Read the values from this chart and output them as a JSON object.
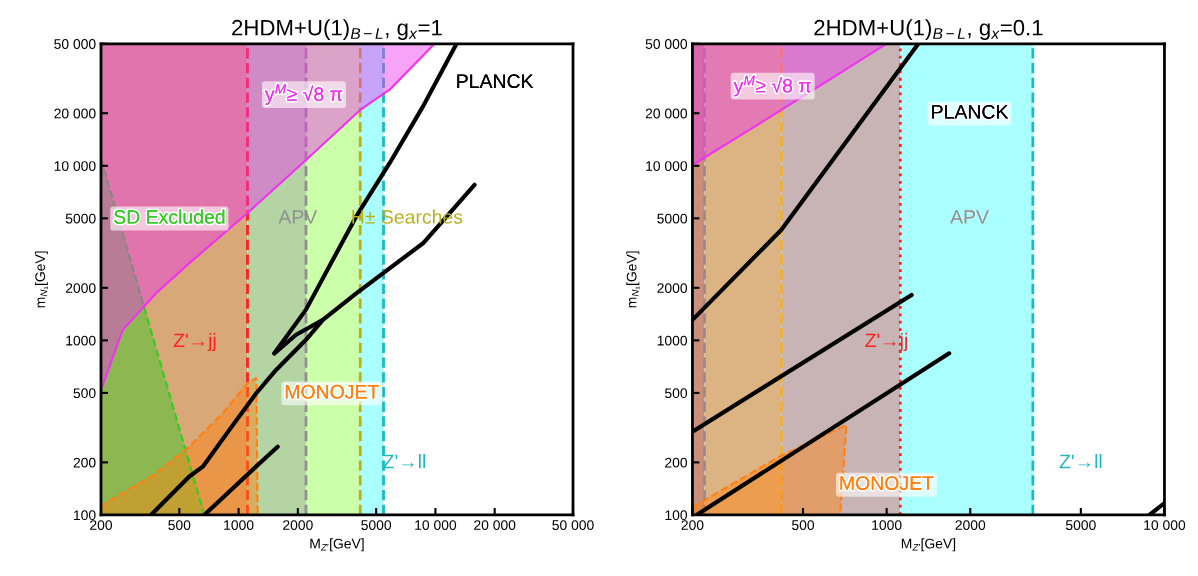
{
  "chart_data": [
    {
      "type": "line",
      "title": "2HDM+U(1)$_{B−L}$, g$_{x}$=1",
      "xlabel": "M$_{Z′}$[GeV]",
      "ylabel": "m$_{N₁}$[GeV]",
      "log": "xy",
      "grid": false,
      "legend": false,
      "xlim": [
        200,
        50000
      ],
      "ylim": [
        100,
        50000
      ],
      "xticks": [
        200,
        500,
        1000,
        2000,
        5000,
        {
          "value": 10000,
          "label": "10 000"
        },
        {
          "value": 20000,
          "label": "20 000"
        },
        {
          "value": 50000,
          "label": "50 000"
        }
      ],
      "yticks": [
        100,
        200,
        500,
        1000,
        2000,
        5000,
        {
          "value": 10000,
          "label": "10 000"
        },
        {
          "value": 20000,
          "label": "20 000"
        },
        {
          "value": 50000,
          "label": "50 000"
        }
      ],
      "bands": [
        {
          "axis": "x",
          "from": 200,
          "to": 1110,
          "color": "#d8a878"
        },
        {
          "axis": "x",
          "from": 1110,
          "to": 2200,
          "color": "#b4d4a4"
        },
        {
          "axis": "x",
          "from": 2200,
          "to": 4150,
          "color": "#ccffaa"
        },
        {
          "axis": "x",
          "from": 4150,
          "to": 5450,
          "color": "#aaffff"
        }
      ],
      "ref_lines": [
        {
          "axis": "x",
          "value": 1110,
          "label": "Z'→jj",
          "color": "#ff2020",
          "line_style": "dashed"
        },
        {
          "axis": "x",
          "value": 2200,
          "label": "APV",
          "color": "#909090",
          "line_style": "dashed"
        },
        {
          "axis": "x",
          "value": 4150,
          "label": "H± Searches",
          "color": "#b8b020",
          "line_style": "dashed"
        },
        {
          "axis": "x",
          "value": 5450,
          "label": "Z'→ll",
          "color": "#20b8c0",
          "line_style": "dashed"
        }
      ],
      "series": [
        {
          "type": "area",
          "name": "SD Excluded",
          "color": "#33cc22",
          "x": [
            200,
            670
          ],
          "values": [
            11000,
            100
          ]
        },
        {
          "type": "area",
          "name": "MONOJET",
          "color": "#ff8010",
          "x": [
            200,
            212,
            381,
            562,
            832,
            1110,
            1230,
            1250
          ],
          "values": [
            110,
            117,
            173,
            246,
            383,
            569,
            607,
            100
          ]
        },
        {
          "name": "y$^{M}$≥ √8 π",
          "color": "#ee33ee",
          "x": [
            200,
            258,
            381,
            562,
            1110,
            2200,
            4150,
            5850,
            9900
          ],
          "values": [
            520,
            1150,
            1860,
            2770,
            5360,
            10800,
            20900,
            27300,
            50000
          ],
          "lower": [
            520,
            1150,
            1860,
            2770,
            5360,
            10800,
            20900,
            27300,
            50000
          ],
          "upper": [
            50000,
            50000,
            50000,
            50000,
            50000,
            50000,
            50000,
            50000,
            50000
          ]
        },
        {
          "name": "PLANCK",
          "color": "#000000",
          "x": [
            1520,
            2200,
            3960,
            5850,
            8650,
            12800
          ],
          "values": [
            843,
            1500,
            5130,
            10350,
            21900,
            50000
          ]
        },
        {
          "color": "#000000",
          "x": [
            359,
            562,
            658,
            898,
            1230,
            1550,
            2200,
            2680,
            3960,
            8650,
            15800
          ],
          "values": [
            100,
            166,
            189,
            307,
            498,
            677,
            1007,
            1310,
            1860,
            3600,
            7780
          ]
        },
        {
          "color": "#000000",
          "x": [
            1520,
            1960,
            2680
          ],
          "values": [
            843,
            1077,
            1310
          ]
        },
        {
          "color": "#000000",
          "x": [
            670,
            1280,
            1580
          ],
          "values": [
            100,
            198,
            246
          ]
        }
      ]
    },
    {
      "type": "line",
      "title": "2HDM+U(1)$_{B−L}$, g$_{x}$=0.1",
      "xlabel": "M$_{Z′}$[GeV]",
      "ylabel": "m$_{N₁}$[GeV]",
      "log": "xy",
      "grid": false,
      "legend": false,
      "xlim": [
        200,
        10000
      ],
      "ylim": [
        100,
        50000
      ],
      "xticks": [
        200,
        500,
        1000,
        2000,
        5000,
        {
          "value": 10000,
          "label": "10 000"
        }
      ],
      "yticks": [
        100,
        200,
        500,
        1000,
        2000,
        5000,
        {
          "value": 10000,
          "label": "10 000"
        },
        {
          "value": 20000,
          "label": "20 000"
        },
        {
          "value": 50000,
          "label": "50 000"
        }
      ],
      "bands": [
        {
          "axis": "x",
          "from": 200,
          "to": 221,
          "color": "#c8907c"
        },
        {
          "axis": "x",
          "from": 221,
          "to": 418,
          "color": "#dcb484"
        },
        {
          "axis": "x",
          "from": 418,
          "to": 1120,
          "color": "#c8b4b4"
        },
        {
          "axis": "x",
          "from": 1120,
          "to": 3360,
          "color": "#aaffff"
        }
      ],
      "ref_lines": [
        {
          "axis": "x",
          "value": 221,
          "label": "APV",
          "color": "#a08888",
          "line_style": "dashed"
        },
        {
          "axis": "x",
          "value": 418,
          "color": "#f0b030",
          "line_style": "dashed"
        },
        {
          "axis": "x",
          "value": 1120,
          "label": "Z'→jj",
          "color": "#ff2020",
          "line_style": "dotted"
        },
        {
          "axis": "x",
          "value": 3360,
          "label": "Z'→ll",
          "color": "#20b8c0",
          "line_style": "dashed"
        }
      ],
      "series": [
        {
          "type": "area",
          "name": "MONOJET",
          "color": "#ff8010",
          "x": [
            200,
            212,
            412,
            717,
            680
          ],
          "values": [
            110,
            117,
            216,
            328,
            100
          ]
        },
        {
          "name": "y$^{M}$≥ √8 π",
          "color": "#ee33ee",
          "x": [
            200,
            418,
            1000
          ],
          "values": [
            10100,
            20900,
            50000
          ],
          "lower": [
            10100,
            20900,
            50000
          ],
          "upper": [
            50000,
            50000,
            50000
          ]
        },
        {
          "name": "PLANCK",
          "color": "#000000",
          "x": [
            200,
            418,
            1300
          ],
          "values": [
            1310,
            4300,
            50000
          ]
        },
        {
          "color": "#000000",
          "x": [
            200,
            1230
          ],
          "values": [
            300,
            1820
          ]
        },
        {
          "color": "#000000",
          "x": [
            207,
            1680
          ],
          "values": [
            100,
            843
          ]
        },
        {
          "color": "#000000",
          "x": [
            8830,
            10000
          ],
          "values": [
            100,
            117
          ]
        }
      ]
    }
  ]
}
